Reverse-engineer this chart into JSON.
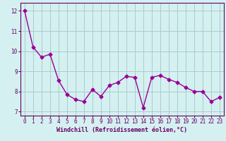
{
  "x": [
    0,
    1,
    2,
    3,
    4,
    5,
    6,
    7,
    8,
    9,
    10,
    11,
    12,
    13,
    14,
    15,
    16,
    17,
    18,
    19,
    20,
    21,
    22,
    23
  ],
  "y": [
    12.0,
    10.2,
    9.7,
    9.85,
    8.55,
    7.85,
    7.6,
    7.5,
    8.1,
    7.75,
    8.3,
    8.45,
    8.75,
    8.7,
    7.2,
    8.7,
    8.8,
    8.6,
    8.45,
    8.2,
    8.0,
    8.0,
    7.5,
    7.7
  ],
  "line_color": "#990099",
  "marker": "D",
  "marker_size": 2.5,
  "bg_color": "#d5f0f0",
  "grid_color": "#aacccc",
  "xlabel": "Windchill (Refroidissement éolien,°C)",
  "xlabel_color": "#660066",
  "tick_color": "#660066",
  "ylim": [
    6.8,
    12.4
  ],
  "xlim": [
    -0.5,
    23.5
  ],
  "yticks": [
    7,
    8,
    9,
    10,
    11,
    12
  ],
  "xticks": [
    0,
    1,
    2,
    3,
    4,
    5,
    6,
    7,
    8,
    9,
    10,
    11,
    12,
    13,
    14,
    15,
    16,
    17,
    18,
    19,
    20,
    21,
    22,
    23
  ],
  "tick_fontsize": 5.5,
  "xlabel_fontsize": 6.0,
  "linewidth": 1.0
}
